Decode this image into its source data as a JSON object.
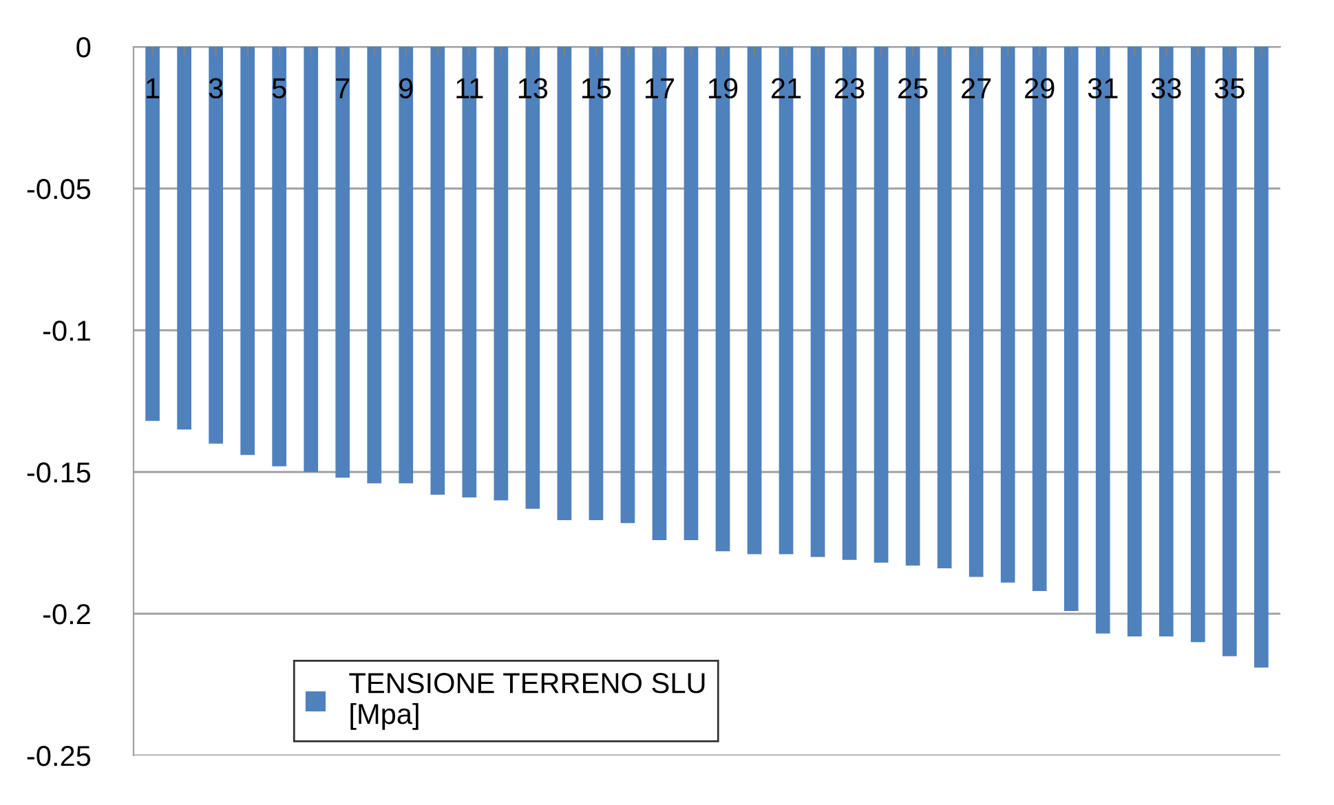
{
  "chart_data": {
    "type": "bar",
    "categories": [
      "1",
      null,
      "3",
      null,
      "5",
      null,
      "7",
      null,
      "9",
      null,
      "11",
      null,
      "13",
      null,
      "15",
      null,
      "17",
      null,
      "19",
      null,
      "21",
      null,
      "23",
      null,
      "25",
      null,
      "27",
      null,
      "29",
      null,
      "31",
      null,
      "33",
      null,
      "35",
      null
    ],
    "series": [
      {
        "name": "TENSIONE TERRENO SLU\n[Mpa]",
        "color": "#4f81bd",
        "values": [
          -0.132,
          -0.135,
          -0.14,
          -0.144,
          -0.148,
          -0.15,
          -0.152,
          -0.154,
          -0.154,
          -0.158,
          -0.159,
          -0.16,
          -0.163,
          -0.167,
          -0.167,
          -0.168,
          -0.174,
          -0.174,
          -0.178,
          -0.179,
          -0.179,
          -0.18,
          -0.181,
          -0.182,
          -0.183,
          -0.184,
          -0.187,
          -0.189,
          -0.192,
          -0.199,
          -0.207,
          -0.208,
          -0.208,
          -0.21,
          -0.215,
          -0.219
        ]
      }
    ],
    "ylim": [
      -0.25,
      0
    ],
    "yticks": [
      {
        "value": -0.25,
        "label": "-0.25"
      },
      {
        "value": -0.2,
        "label": "-0.2"
      },
      {
        "value": -0.15,
        "label": "-0.15"
      },
      {
        "value": -0.1,
        "label": "-0.1"
      },
      {
        "value": -0.05,
        "label": "-0.05"
      },
      0
    ],
    "grid": "y",
    "legend": "bottom left"
  }
}
